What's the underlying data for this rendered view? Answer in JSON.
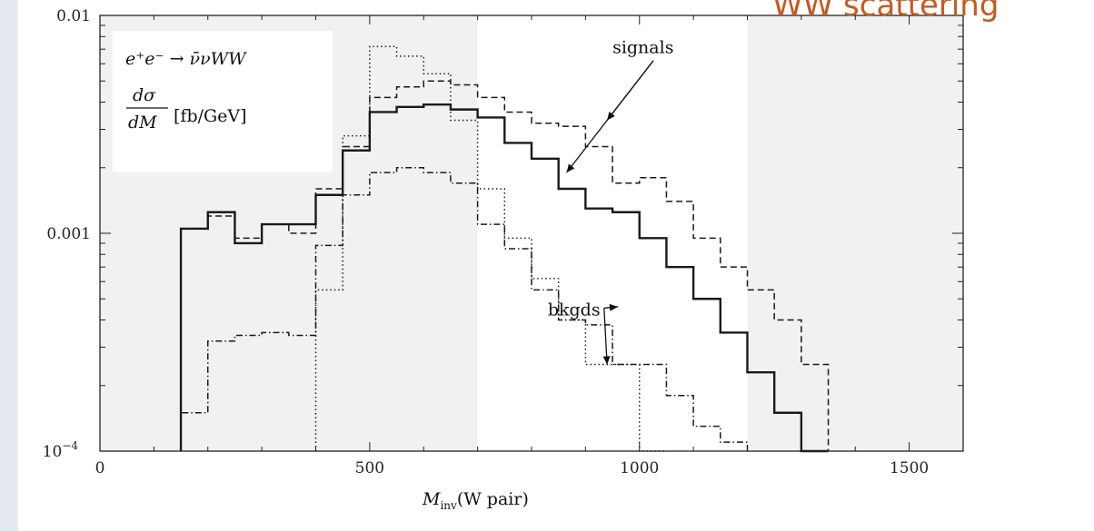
{
  "slide": {
    "title": "WW scattering",
    "title_color": "#c65a1f"
  },
  "chart_data": {
    "type": "line",
    "style": "step histogram",
    "xlabel": "M_inv(W pair)",
    "x_axis_label_parts": {
      "main": "M",
      "sub": "inv",
      "rest": "(W pair)"
    },
    "ylabel": "",
    "xlim": [
      0,
      1600
    ],
    "ylim": [
      0.0001,
      0.01
    ],
    "y_scale": "log",
    "x_ticks": [
      "0",
      "500",
      "1000",
      "1500"
    ],
    "y_ticks": [
      {
        "value": 0.01,
        "label": "0.01"
      },
      {
        "value": 0.001,
        "label": "0.001"
      },
      {
        "value": 0.0001,
        "label": "10",
        "exponent": "−4"
      }
    ],
    "grid": false,
    "shaded_ranges": [
      [
        0,
        700
      ],
      [
        1200,
        1600
      ]
    ],
    "shade_color": "#f1f1f1",
    "inset_text": {
      "process": "e⁺e⁻ → ν̄νWW",
      "numerator": "dσ",
      "denominator": "dM",
      "units": "[fb/GeV]"
    },
    "annotations": [
      {
        "text": "signals",
        "x": 950,
        "y": 0.0067
      },
      {
        "text": "bkgds",
        "x": 830,
        "y": 0.00042
      }
    ],
    "bin_edges": [
      150,
      200,
      250,
      300,
      350,
      400,
      450,
      500,
      550,
      600,
      650,
      700,
      750,
      800,
      850,
      900,
      950,
      1000,
      1050,
      1100,
      1150,
      1200,
      1250,
      1300,
      1350
    ],
    "series": [
      {
        "style": "solid",
        "values": [
          0.00105,
          0.00125,
          0.0009,
          0.0011,
          0.0011,
          0.0015,
          0.0024,
          0.0036,
          0.0038,
          0.0039,
          0.0037,
          0.0034,
          0.0026,
          0.0022,
          0.0016,
          0.0013,
          0.00125,
          0.00095,
          0.0007,
          0.0005,
          0.00035,
          0.00023,
          0.00015,
          0.0001
        ]
      },
      {
        "style": "dashed",
        "values": [
          0.00105,
          0.0012,
          0.00095,
          0.0011,
          0.001,
          0.0016,
          0.0025,
          0.0042,
          0.0047,
          0.005,
          0.0048,
          0.0042,
          0.0036,
          0.0032,
          0.0031,
          0.0025,
          0.0017,
          0.0018,
          0.0014,
          0.00095,
          0.0007,
          0.00055,
          0.0004,
          0.00025
        ]
      },
      {
        "style": "dotted",
        "values": [
          null,
          null,
          null,
          null,
          null,
          0.00055,
          0.0028,
          0.0072,
          0.0065,
          0.0054,
          0.0033,
          0.0016,
          0.00095,
          0.00062,
          0.0004,
          0.00025,
          0.00025,
          0.0001,
          null,
          null,
          null,
          null,
          null,
          null
        ]
      },
      {
        "style": "dashdot",
        "values": [
          0.00015,
          0.00032,
          0.00034,
          0.00035,
          0.00034,
          0.00088,
          0.0015,
          0.0019,
          0.002,
          0.0019,
          0.0017,
          0.0011,
          0.00085,
          0.00055,
          0.0004,
          0.00038,
          0.00025,
          0.00025,
          0.00018,
          0.00013,
          0.00011,
          null,
          null,
          null
        ]
      }
    ]
  }
}
